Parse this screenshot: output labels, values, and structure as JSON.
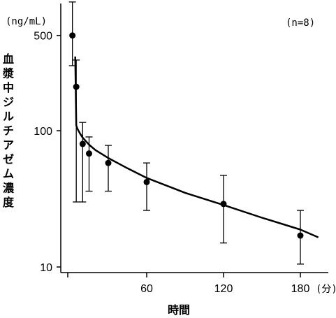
{
  "chart_data": {
    "type": "scatter",
    "ylabel": "血漿中ジルチアゼム濃度",
    "ylabel_unit": "(ng/mL)",
    "xlabel": "時間",
    "xunit": "(分)",
    "annotation": "(n=8)",
    "y_scale": "log",
    "ylim": [
      10,
      1000
    ],
    "xlim": [
      -5,
      195
    ],
    "y_ticks": [
      10,
      100,
      500
    ],
    "y_tick_labels": [
      "10",
      "100",
      "500"
    ],
    "x_ticks": [
      0,
      60,
      120,
      180
    ],
    "x_tick_labels": [
      "",
      "60",
      "120",
      "180"
    ],
    "points": {
      "x": [
        2,
        5,
        10,
        15,
        30,
        60,
        120,
        180
      ],
      "y": [
        500,
        210,
        80,
        68,
        58,
        42,
        29,
        17
      ],
      "err_low": [
        300,
        30,
        30,
        36,
        36,
        26,
        15,
        10.5
      ],
      "err_high": [
        880,
        330,
        115,
        90,
        78,
        58,
        47,
        26
      ]
    },
    "fit_curve": {
      "x": [
        4.2,
        5,
        6,
        8,
        10,
        15,
        20,
        30,
        45,
        60,
        90,
        120,
        150,
        180,
        194
      ],
      "y": [
        350,
        109,
        103,
        95,
        89,
        79,
        72,
        63,
        53,
        45,
        35,
        28.5,
        23,
        18.8,
        16.5
      ]
    },
    "grid": false,
    "legend": "none"
  }
}
